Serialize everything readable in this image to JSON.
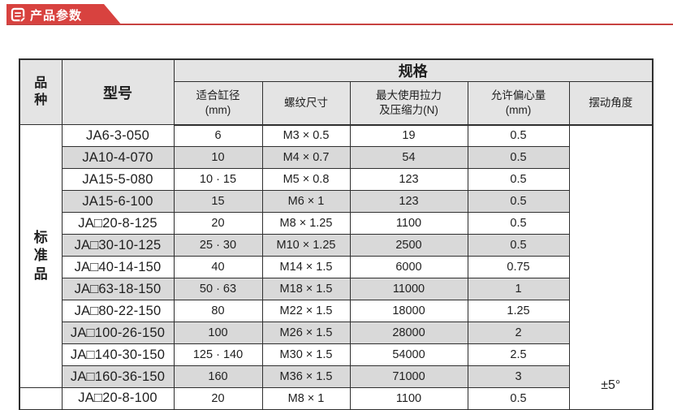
{
  "banner": {
    "label": "产品参数",
    "icon": "document-lines-icon"
  },
  "table": {
    "headers": {
      "category": "品种",
      "model": "型号",
      "spec_group": "规格",
      "sub_columns": [
        {
          "line1": "适合缸径",
          "line2": "(mm)"
        },
        {
          "line1": "螺纹尺寸",
          "line2": ""
        },
        {
          "line1": "最大使用拉力",
          "line2": "及压缩力(N)"
        },
        {
          "line1": "允许偏心量",
          "line2": "(mm)"
        },
        {
          "line1": "摆动角度",
          "line2": ""
        }
      ]
    },
    "category_group": "标准品",
    "swing_angle": "±5°",
    "rows": [
      {
        "model": "JA6-3-050",
        "bore": "6",
        "thread": "M3 × 0.5",
        "force": "19",
        "eccentricity": "0.5"
      },
      {
        "model": "JA10-4-070",
        "bore": "10",
        "thread": "M4 × 0.7",
        "force": "54",
        "eccentricity": "0.5"
      },
      {
        "model": "JA15-5-080",
        "bore": "10 · 15",
        "thread": "M5 × 0.8",
        "force": "123",
        "eccentricity": "0.5"
      },
      {
        "model": "JA15-6-100",
        "bore": "15",
        "thread": "M6 × 1",
        "force": "123",
        "eccentricity": "0.5"
      },
      {
        "model": "JA□20-8-125",
        "bore": "20",
        "thread": "M8 × 1.25",
        "force": "1100",
        "eccentricity": "0.5"
      },
      {
        "model": "JA□30-10-125",
        "bore": "25 · 30",
        "thread": "M10 × 1.25",
        "force": "2500",
        "eccentricity": "0.5"
      },
      {
        "model": "JA□40-14-150",
        "bore": "40",
        "thread": "M14 × 1.5",
        "force": "6000",
        "eccentricity": "0.75"
      },
      {
        "model": "JA□63-18-150",
        "bore": "50 · 63",
        "thread": "M18 × 1.5",
        "force": "11000",
        "eccentricity": "1"
      },
      {
        "model": "JA□80-22-150",
        "bore": "80",
        "thread": "M22 × 1.5",
        "force": "18000",
        "eccentricity": "1.25"
      },
      {
        "model": "JA□100-26-150",
        "bore": "100",
        "thread": "M26 × 1.5",
        "force": "28000",
        "eccentricity": "2"
      },
      {
        "model": "JA□140-30-150",
        "bore": "125 · 140",
        "thread": "M30 × 1.5",
        "force": "54000",
        "eccentricity": "2.5"
      },
      {
        "model": "JA□160-36-150",
        "bore": "160",
        "thread": "M36 × 1.5",
        "force": "71000",
        "eccentricity": "3"
      },
      {
        "model": "JA□20-8-100",
        "bore": "20",
        "thread": "M8 × 1",
        "force": "1100",
        "eccentricity": "0.5",
        "partial": true
      }
    ]
  },
  "colors": {
    "banner_red": "#d8423f",
    "header_bg": "#e4e4e4",
    "row_alt_bg": "#d9d9d9",
    "border": "#2f2f2f",
    "text": "#1f1f1f"
  }
}
